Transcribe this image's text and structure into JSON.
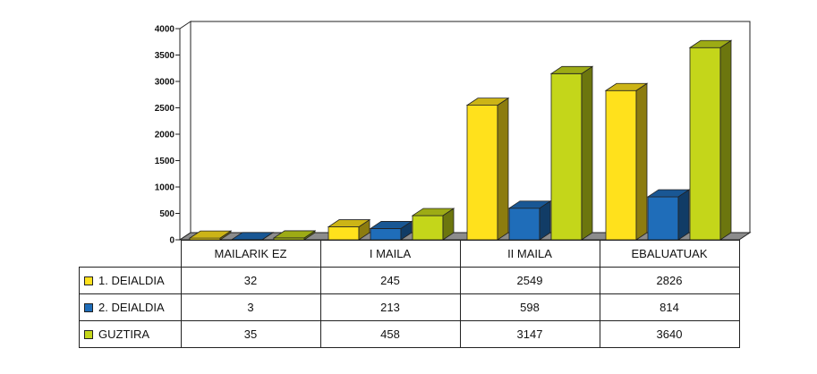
{
  "chart_data": {
    "type": "bar",
    "categories": [
      "MAILARIK EZ",
      "I MAILA",
      "II MAILA",
      "EBALUATUAK"
    ],
    "series": [
      {
        "name": "1. DEIALDIA",
        "values": [
          32,
          245,
          2549,
          2826
        ],
        "color": "#ffe11c"
      },
      {
        "name": "2. DEIALDIA",
        "values": [
          3,
          213,
          598,
          814
        ],
        "color": "#1f6db9"
      },
      {
        "name": "GUZTIRA",
        "values": [
          35,
          458,
          3147,
          3640
        ],
        "color": "#c4d61a"
      }
    ],
    "yticks": [
      "0",
      "500",
      "1000",
      "1500",
      "2000",
      "2500",
      "3000",
      "3500",
      "4000"
    ],
    "ylim": [
      0,
      4000
    ],
    "grid": false,
    "legend": "data-table",
    "title": "",
    "xlabel": "",
    "ylabel": ""
  }
}
